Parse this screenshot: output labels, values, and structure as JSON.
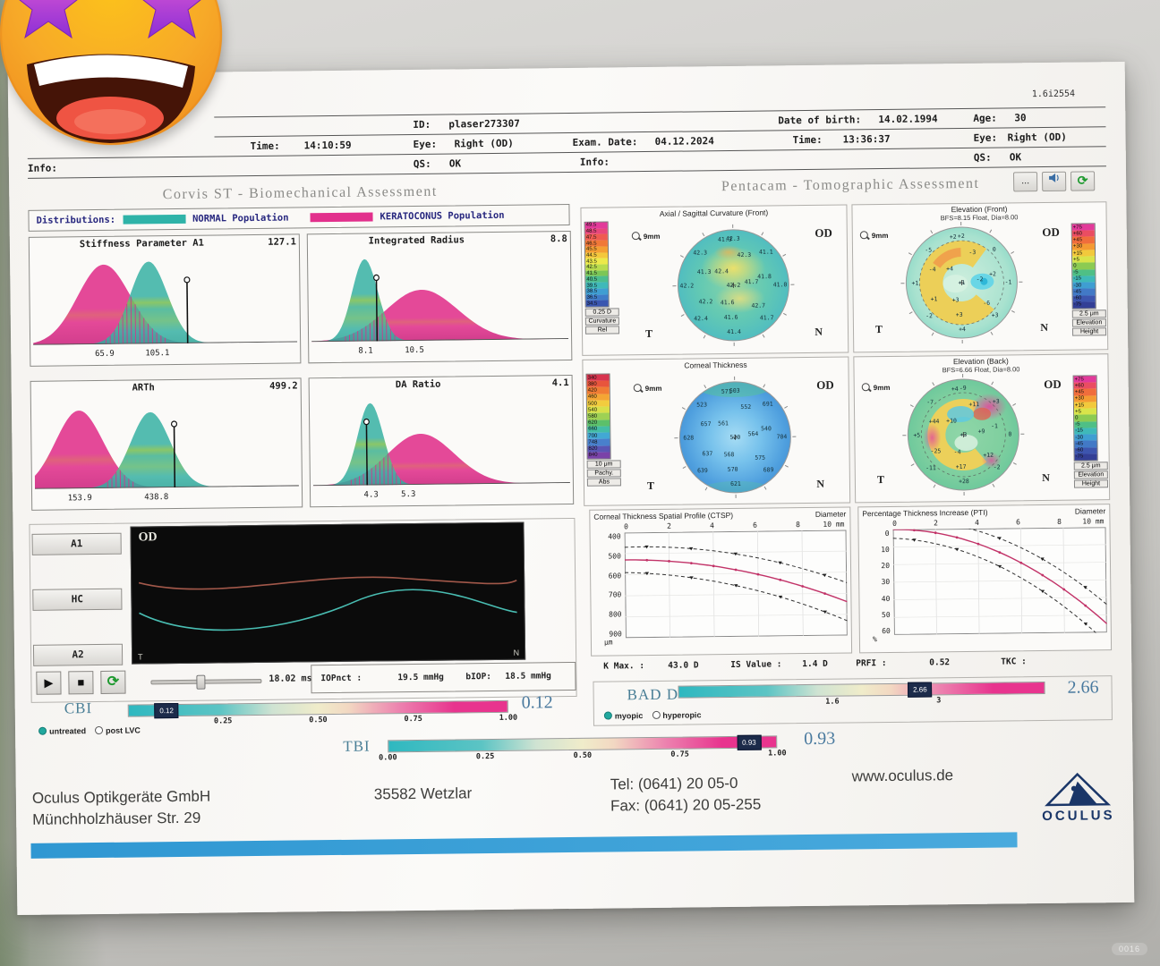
{
  "meta": {
    "version_code": "1.6i2554",
    "watermark": "0016"
  },
  "header": {
    "id_label": "ID:",
    "id_value": "plaser273307",
    "dob_label": "Date of birth:",
    "dob_value": "14.02.1994",
    "age_label": "Age:",
    "age_value": "30",
    "time_label": "Time:",
    "time_value": "14:10:59",
    "eye_label": "Eye:",
    "eye_value": "Right (OD)",
    "exam_label": "Exam. Date:",
    "exam_value": "04.12.2024",
    "time2_label": "Time:",
    "time2_value": "13:36:37",
    "eye2_label": "Eye:",
    "eye2_value": "Right (OD)",
    "info_label": "Info:",
    "qs_label": "QS:",
    "qs_value": "OK",
    "info2_label": "Info:",
    "qs2_label": "QS:",
    "qs2_value": "OK"
  },
  "sections": {
    "left_title": "Corvis ST - Biomechanical Assessment",
    "right_title": "Pentacam - Tomographic Assessment",
    "more_button": "...",
    "refresh_glyph": "⟳"
  },
  "distributions": {
    "label": "Distributions:",
    "normal_label": "NORMAL Population",
    "keratoconus_label": "KERATOCONUS Population",
    "normal_color": "#2fb3a8",
    "keratoconus_color": "#e2308c"
  },
  "dist_charts": [
    {
      "title": "Stiffness Parameter A1",
      "value": "127.1",
      "kc": {
        "mu": 0.27,
        "sig": 0.1,
        "amp": 0.97
      },
      "norm": {
        "mu": 0.44,
        "sig": 0.07,
        "amp": 1.0
      },
      "marker": 0.585,
      "ticks": [
        {
          "t": "65.9",
          "f": 0.27
        },
        {
          "t": "105.1",
          "f": 0.47
        }
      ]
    },
    {
      "title": "Integrated Radius",
      "value": "8.8",
      "kc": {
        "mu": 0.43,
        "sig": 0.14,
        "amp": 0.62
      },
      "norm": {
        "mu": 0.21,
        "sig": 0.05,
        "amp": 1.0
      },
      "marker": 0.255,
      "ticks": [
        {
          "t": "8.1",
          "f": 0.21
        },
        {
          "t": "10.5",
          "f": 0.4
        }
      ]
    },
    {
      "title": "ARTh",
      "value": "499.2",
      "kc": {
        "mu": 0.17,
        "sig": 0.09,
        "amp": 0.95
      },
      "norm": {
        "mu": 0.44,
        "sig": 0.075,
        "amp": 0.92
      },
      "marker": 0.53,
      "ticks": [
        {
          "t": "153.9",
          "f": 0.17
        },
        {
          "t": "438.8",
          "f": 0.46
        }
      ]
    },
    {
      "title": "DA Ratio",
      "value": "4.1",
      "kc": {
        "mu": 0.42,
        "sig": 0.13,
        "amp": 0.62
      },
      "norm": {
        "mu": 0.225,
        "sig": 0.05,
        "amp": 1.0
      },
      "marker": 0.21,
      "ticks": [
        {
          "t": "4.3",
          "f": 0.225
        },
        {
          "t": "5.3",
          "f": 0.37
        }
      ]
    }
  ],
  "scales": {
    "curv": {
      "foot": [
        "0.25 D",
        "Curvature",
        "Rel"
      ],
      "cells": [
        {
          "c": "#e23a9a",
          "t": "49.5"
        },
        {
          "c": "#e8467c",
          "t": "48.5"
        },
        {
          "c": "#ef5b51",
          "t": "47.5"
        },
        {
          "c": "#f07838",
          "t": "46.5"
        },
        {
          "c": "#f49f33",
          "t": "45.5"
        },
        {
          "c": "#f4c83c",
          "t": "44.5"
        },
        {
          "c": "#ece94a",
          "t": "43.5"
        },
        {
          "c": "#b8dc4e",
          "t": "42.5"
        },
        {
          "c": "#7cc656",
          "t": "41.5"
        },
        {
          "c": "#4cbd8e",
          "t": "40.5"
        },
        {
          "c": "#3fb9b9",
          "t": "39.5"
        },
        {
          "c": "#3f9ed2",
          "t": "38.5"
        },
        {
          "c": "#3f7cc8",
          "t": "36.5"
        },
        {
          "c": "#3a56b0",
          "t": "34.5"
        }
      ]
    },
    "pachy": {
      "foot": [
        "10 μm",
        "Pachy.",
        "Abs"
      ],
      "cells": [
        {
          "c": "#d8334e",
          "t": "340"
        },
        {
          "c": "#e8553c",
          "t": "380"
        },
        {
          "c": "#f07c34",
          "t": "420"
        },
        {
          "c": "#f4a534",
          "t": "460"
        },
        {
          "c": "#f2cc3e",
          "t": "500"
        },
        {
          "c": "#d8e04a",
          "t": "540"
        },
        {
          "c": "#9ed154",
          "t": "580"
        },
        {
          "c": "#5cc06a",
          "t": "620"
        },
        {
          "c": "#44bda6",
          "t": "660"
        },
        {
          "c": "#42a8d4",
          "t": "700"
        },
        {
          "c": "#4980cc",
          "t": "748"
        },
        {
          "c": "#5a55b4",
          "t": "820"
        },
        {
          "c": "#7a42a8",
          "t": "840"
        }
      ]
    },
    "elev": {
      "foot": [
        "2.5 μm",
        "Elevation",
        "Height"
      ],
      "cells": [
        {
          "c": "#e23a9a",
          "t": "+75"
        },
        {
          "c": "#ea4d62",
          "t": "+60"
        },
        {
          "c": "#f06d3c",
          "t": "+45"
        },
        {
          "c": "#f49a33",
          "t": "+30"
        },
        {
          "c": "#f2c93c",
          "t": "+15"
        },
        {
          "c": "#d9e44a",
          "t": "+5"
        },
        {
          "c": "#8ccb52",
          "t": "0"
        },
        {
          "c": "#4fbf86",
          "t": "-5"
        },
        {
          "c": "#3fb9b9",
          "t": "-15"
        },
        {
          "c": "#3f9ed2",
          "t": "-30"
        },
        {
          "c": "#4279c6",
          "t": "-45"
        },
        {
          "c": "#3d55ae",
          "t": "-60"
        },
        {
          "c": "#333f96",
          "t": "-75"
        }
      ]
    }
  },
  "maps": [
    {
      "id": "curv",
      "title": "Axial / Sagittal Curvature (Front)",
      "subtitle": "",
      "eye": "OD",
      "zoom": "9mm",
      "t": "T",
      "n": "N",
      "dashed": false,
      "numbers": [
        "42.2",
        "41.7",
        "41.6",
        "42.4",
        "42.3",
        "41.8",
        "42.7",
        "41.6",
        "42.2",
        "41.3",
        "42.3",
        "41.1",
        "41.0",
        "41.7",
        "41.4",
        "42.4",
        "42.2",
        "42.3",
        "41.3"
      ]
    },
    {
      "id": "elevF",
      "title": "Elevation (Front)",
      "subtitle": "BFS=8.15 Float, Dia=8.00",
      "eye": "OD",
      "zoom": "9mm",
      "t": "T",
      "n": "N",
      "dashed": true,
      "numbers": [
        "+1",
        "-2",
        "+3",
        "+4",
        "-3",
        "+2",
        "-6",
        "+3",
        "+1",
        "-4",
        "+2",
        "0",
        "-1",
        "+3",
        "+4",
        "-2",
        "+1",
        "-5",
        "+2"
      ]
    },
    {
      "id": "pachy",
      "title": "Corneal Thickness",
      "subtitle": "",
      "eye": "OD",
      "zoom": "9mm",
      "t": "T",
      "n": "N",
      "dashed": false,
      "numbers": [
        "520",
        "564",
        "568",
        "561",
        "552",
        "540",
        "575",
        "570",
        "637",
        "657",
        "603",
        "691",
        "704",
        "689",
        "621",
        "639",
        "628",
        "523",
        "571"
      ]
    },
    {
      "id": "elevB",
      "title": "Elevation (Back)",
      "subtitle": "BFS=6.66 Float, Dia=8.00",
      "eye": "OD",
      "zoom": "9mm",
      "t": "T",
      "n": "N",
      "dashed": true,
      "numbers": [
        "+3",
        "+9",
        "-4",
        "+10",
        "+11",
        "-1",
        "+12",
        "+17",
        "-25",
        "+44",
        "-9",
        "+3",
        "0",
        "-2",
        "+28",
        "-11",
        "+5",
        "-7",
        "+4"
      ]
    }
  ],
  "profiles": [
    {
      "title": "Corneal Thickness Spatial Profile (CTSP)",
      "diam_label": "Diameter",
      "xmax": "10  mm",
      "unit": "μm",
      "yticks": [
        "400",
        "500",
        "600",
        "700",
        "800",
        "900"
      ],
      "xticks": [
        "0",
        "2",
        "4",
        "6",
        "8"
      ],
      "model": {
        "base": 530,
        "quad": 2.1,
        "ymin": 400,
        "yspan": 500,
        "env": 60,
        "envk": 3
      }
    },
    {
      "title": "Percentage Thickness Increase (PTI)",
      "diam_label": "Diameter",
      "xmax": "10  mm",
      "unit": "%",
      "yticks": [
        "0",
        "10",
        "20",
        "30",
        "40",
        "50",
        "60"
      ],
      "xticks": [
        "0",
        "2",
        "4",
        "6",
        "8"
      ],
      "model": {
        "base": 0,
        "quad": 0.55,
        "ymin": 0,
        "yspan": 60,
        "env": 5,
        "envk": 0.6
      }
    }
  ],
  "indices": {
    "kmax_label": "K Max. :",
    "kmax_value": "43.0 D",
    "is_label": "IS Value :",
    "is_value": "1.4 D",
    "prfi_label": "PRFI :",
    "prfi_value": "0.52",
    "tkc_label": "TKC :",
    "tkc_value": ""
  },
  "video": {
    "od": "OD",
    "t": "T",
    "n": "N"
  },
  "controls": {
    "buttons": [
      "A1",
      "HC",
      "A2"
    ],
    "play_glyph": "▶",
    "stop_glyph": "■",
    "refresh_glyph": "⟳",
    "time": "18.02 ms",
    "slider": 0.45,
    "iop_label": "IOPnct :",
    "iop_value": "19.5 mmHg",
    "biop_label": "bIOP:",
    "biop_value": "18.5 mmHg"
  },
  "bars": {
    "cbi": {
      "label": "CBI",
      "value": "0.12",
      "marker": 0.1,
      "marker_label": "0.12",
      "ticks": [
        {
          "t": "0.25",
          "f": 0.25
        },
        {
          "t": "0.50",
          "f": 0.5
        },
        {
          "t": "0.75",
          "f": 0.75
        },
        {
          "t": "1.00",
          "f": 1.0
        }
      ]
    },
    "bad": {
      "label": "BAD D",
      "value": "2.66",
      "marker": 0.66,
      "marker_label": "2.66",
      "ticks": [
        {
          "t": "1.6",
          "f": 0.42
        },
        {
          "t": "3",
          "f": 0.71
        }
      ]
    },
    "tbi": {
      "label": "TBI",
      "value": "0.93",
      "marker": 0.93,
      "marker_label": "0.93",
      "ticks": [
        {
          "t": "0.00",
          "f": 0.0
        },
        {
          "t": "0.25",
          "f": 0.25
        },
        {
          "t": "0.50",
          "f": 0.5
        },
        {
          "t": "0.75",
          "f": 0.75
        },
        {
          "t": "1.00",
          "f": 1.0
        }
      ]
    }
  },
  "radios": {
    "cbi": [
      {
        "label": "untreated",
        "on": true
      },
      {
        "label": "post LVC",
        "on": false
      }
    ],
    "bad": [
      {
        "label": "myopic",
        "on": true
      },
      {
        "label": "hyperopic",
        "on": false
      }
    ]
  },
  "footer": {
    "company": "Oculus Optikgeräte GmbH",
    "street": "Münchholzhäuser Str. 29",
    "city": "35582 Wetzlar",
    "tel": "Tel:  (0641) 20 05-0",
    "fax": "Fax: (0641) 20 05-255",
    "web": "www.oculus.de",
    "logo": "OCULUS"
  }
}
